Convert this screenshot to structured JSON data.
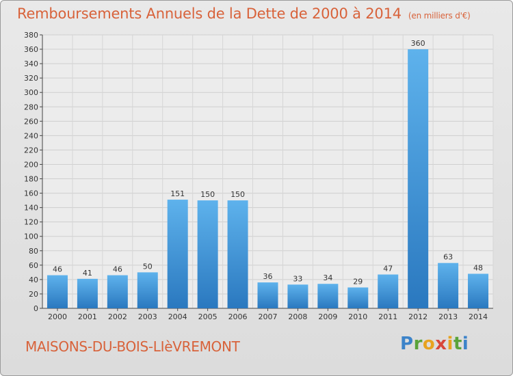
{
  "header": {
    "title": "Remboursements Annuels de la Dette de 2000 à 2014",
    "unit": "(en milliers d'€)"
  },
  "footer": {
    "place": "MAISONS-DU-BOIS-LIèVREMONT",
    "logo": {
      "letters": [
        {
          "ch": "P",
          "color": "#3c83c9"
        },
        {
          "ch": "r",
          "color": "#5aa33a"
        },
        {
          "ch": "o",
          "color": "#e8a21f"
        },
        {
          "ch": "x",
          "color": "#d8473a"
        },
        {
          "ch": "i",
          "color": "#e8a21f"
        },
        {
          "ch": "t",
          "color": "#5aa33a"
        },
        {
          "ch": "i",
          "color": "#3c83c9"
        }
      ]
    }
  },
  "chart_data": {
    "type": "bar",
    "title": "Remboursements Annuels de la Dette de 2000 à 2014",
    "subtitle": "(en milliers d'€)",
    "categories": [
      "2000",
      "2001",
      "2002",
      "2003",
      "2004",
      "2005",
      "2006",
      "2007",
      "2008",
      "2009",
      "2010",
      "2011",
      "2012",
      "2013",
      "2014"
    ],
    "values": [
      46,
      41,
      46,
      50,
      151,
      150,
      150,
      36,
      33,
      34,
      29,
      47,
      360,
      63,
      48
    ],
    "ylim": [
      0,
      380
    ],
    "yticks": [
      0,
      20,
      40,
      60,
      80,
      100,
      120,
      140,
      160,
      180,
      200,
      220,
      240,
      260,
      280,
      300,
      320,
      340,
      360,
      380
    ],
    "grid": true,
    "bar_color": "#3a8fd4"
  }
}
